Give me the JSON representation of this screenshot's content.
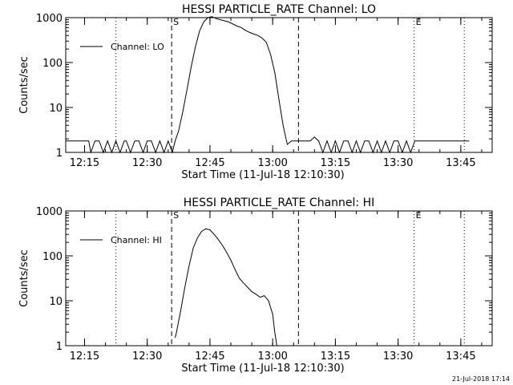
{
  "footer": {
    "timestamp": "21-Jul-2018 17:14"
  },
  "chart_data": [
    {
      "type": "line",
      "title": "HESSI PARTICLE_RATE Channel: LO",
      "xlabel": "Start Time (11-Jul-18 12:10:30)",
      "ylabel": "Counts/sec",
      "yscale": "log",
      "xlim": [
        "12:10:30",
        "13:52:30"
      ],
      "ylim": [
        1,
        1000
      ],
      "x_ticks": [
        "12:15",
        "12:30",
        "12:45",
        "13:00",
        "13:15",
        "13:30",
        "13:45"
      ],
      "y_ticks": [
        {
          "value": 1,
          "label": "1"
        },
        {
          "value": 10,
          "label": "10"
        },
        {
          "value": 100,
          "label": "100"
        },
        {
          "value": 1000,
          "label": "1000"
        }
      ],
      "legend": {
        "position": "top-left",
        "entries": [
          "Channel: LO"
        ]
      },
      "vlines": [
        {
          "x": "12:35:50",
          "style": "dashed",
          "label": "S"
        },
        {
          "x": "13:06:10",
          "style": "dashed",
          "label": ""
        },
        {
          "x": "12:22:30",
          "style": "dotted",
          "label": ""
        },
        {
          "x": "13:33:50",
          "style": "dotted",
          "label": "E"
        },
        {
          "x": "13:45:50",
          "style": "dotted",
          "label": ""
        }
      ],
      "series": [
        {
          "name": "Channel: LO",
          "x": [
            "12:10:30",
            "12:11:00",
            "12:16:00",
            "12:16:30",
            "12:17:30",
            "12:18:30",
            "12:19:30",
            "12:20:30",
            "12:21:30",
            "12:22:30",
            "12:23:30",
            "12:24:30",
            "12:25:00",
            "12:26:00",
            "12:27:00",
            "12:28:00",
            "12:29:00",
            "12:30:00",
            "12:31:00",
            "12:32:00",
            "12:33:00",
            "12:34:00",
            "12:35:00",
            "12:36:00",
            "12:36:40",
            "12:37:30",
            "12:38:30",
            "12:39:30",
            "12:40:30",
            "12:41:30",
            "12:42:30",
            "12:43:30",
            "12:44:30",
            "12:45:30",
            "12:46:30",
            "12:47:30",
            "12:48:30",
            "12:49:30",
            "12:50:30",
            "12:51:30",
            "12:52:30",
            "12:53:30",
            "12:54:30",
            "12:55:30",
            "12:56:30",
            "12:57:30",
            "12:58:30",
            "12:59:30",
            "13:00:30",
            "13:01:30",
            "13:02:30",
            "13:03:30",
            "13:04:30",
            "13:05:10",
            "13:06:00",
            "13:07:00",
            "13:08:00",
            "13:09:00",
            "13:10:00",
            "13:11:00",
            "13:12:00",
            "13:13:00",
            "13:14:00",
            "13:15:00",
            "13:16:00",
            "13:17:00",
            "13:18:00",
            "13:19:00",
            "13:20:00",
            "13:21:00",
            "13:22:00",
            "13:23:00",
            "13:24:00",
            "13:25:00",
            "13:26:00",
            "13:27:00",
            "13:28:00",
            "13:29:00",
            "13:30:00",
            "13:31:00",
            "13:32:00",
            "13:33:00",
            "13:34:00",
            "13:35:00",
            "13:40:00",
            "13:45:00",
            "13:47:00"
          ],
          "values": [
            1.8,
            1.8,
            1.8,
            1.0,
            1.8,
            1.8,
            1.0,
            1.8,
            1.0,
            1.8,
            1.0,
            1.8,
            1.8,
            1.0,
            1.8,
            1.8,
            1.0,
            1.8,
            1.8,
            1.0,
            1.8,
            1.0,
            1.8,
            1.0,
            1.8,
            3,
            8,
            25,
            80,
            220,
            500,
            800,
            1000,
            1050,
            950,
            900,
            850,
            800,
            720,
            650,
            600,
            520,
            470,
            430,
            400,
            350,
            280,
            150,
            60,
            15,
            4,
            1.5,
            1.8,
            1.8,
            1.8,
            1.8,
            1.8,
            1.8,
            2.2,
            1.8,
            1.0,
            1.8,
            1.0,
            1.8,
            1.0,
            1.8,
            1.8,
            1.0,
            1.8,
            1.0,
            1.8,
            1.8,
            1.0,
            1.8,
            1.0,
            1.8,
            1.0,
            1.8,
            1.8,
            1.0,
            1.8,
            1.0,
            1.8,
            1.8,
            1.8,
            1.8,
            1.8
          ]
        }
      ]
    },
    {
      "type": "line",
      "title": "HESSI PARTICLE_RATE Channel: HI",
      "xlabel": "Start Time (11-Jul-18 12:10:30)",
      "ylabel": "Counts/sec",
      "yscale": "log",
      "xlim": [
        "12:10:30",
        "13:52:30"
      ],
      "ylim": [
        1,
        1000
      ],
      "x_ticks": [
        "12:15",
        "12:30",
        "12:45",
        "13:00",
        "13:15",
        "13:30",
        "13:45"
      ],
      "y_ticks": [
        {
          "value": 1,
          "label": "1"
        },
        {
          "value": 10,
          "label": "10"
        },
        {
          "value": 100,
          "label": "100"
        },
        {
          "value": 1000,
          "label": "1000"
        }
      ],
      "legend": {
        "position": "top-left",
        "entries": [
          "Channel: HI"
        ]
      },
      "vlines": [
        {
          "x": "12:35:50",
          "style": "dashed",
          "label": "S"
        },
        {
          "x": "13:06:10",
          "style": "dashed",
          "label": ""
        },
        {
          "x": "12:22:30",
          "style": "dotted",
          "label": ""
        },
        {
          "x": "13:33:50",
          "style": "dotted",
          "label": "E"
        },
        {
          "x": "13:45:50",
          "style": "dotted",
          "label": ""
        }
      ],
      "series": [
        {
          "name": "Channel: HI",
          "x": [
            "12:36:40",
            "12:37:00",
            "12:38:00",
            "12:39:00",
            "12:40:00",
            "12:41:00",
            "12:42:00",
            "12:43:00",
            "12:44:00",
            "12:45:00",
            "12:46:00",
            "12:47:00",
            "12:48:00",
            "12:49:00",
            "12:50:00",
            "12:51:00",
            "12:52:00",
            "12:53:00",
            "12:54:00",
            "12:55:00",
            "12:56:00",
            "12:57:00",
            "12:58:00",
            "12:59:00",
            "13:00:00",
            "13:00:30",
            "13:01:00"
          ],
          "values": [
            1.5,
            2,
            6,
            20,
            60,
            150,
            250,
            350,
            400,
            380,
            300,
            230,
            170,
            120,
            80,
            50,
            32,
            25,
            20,
            16,
            14,
            12,
            13,
            10,
            5,
            2,
            1
          ]
        }
      ]
    }
  ]
}
